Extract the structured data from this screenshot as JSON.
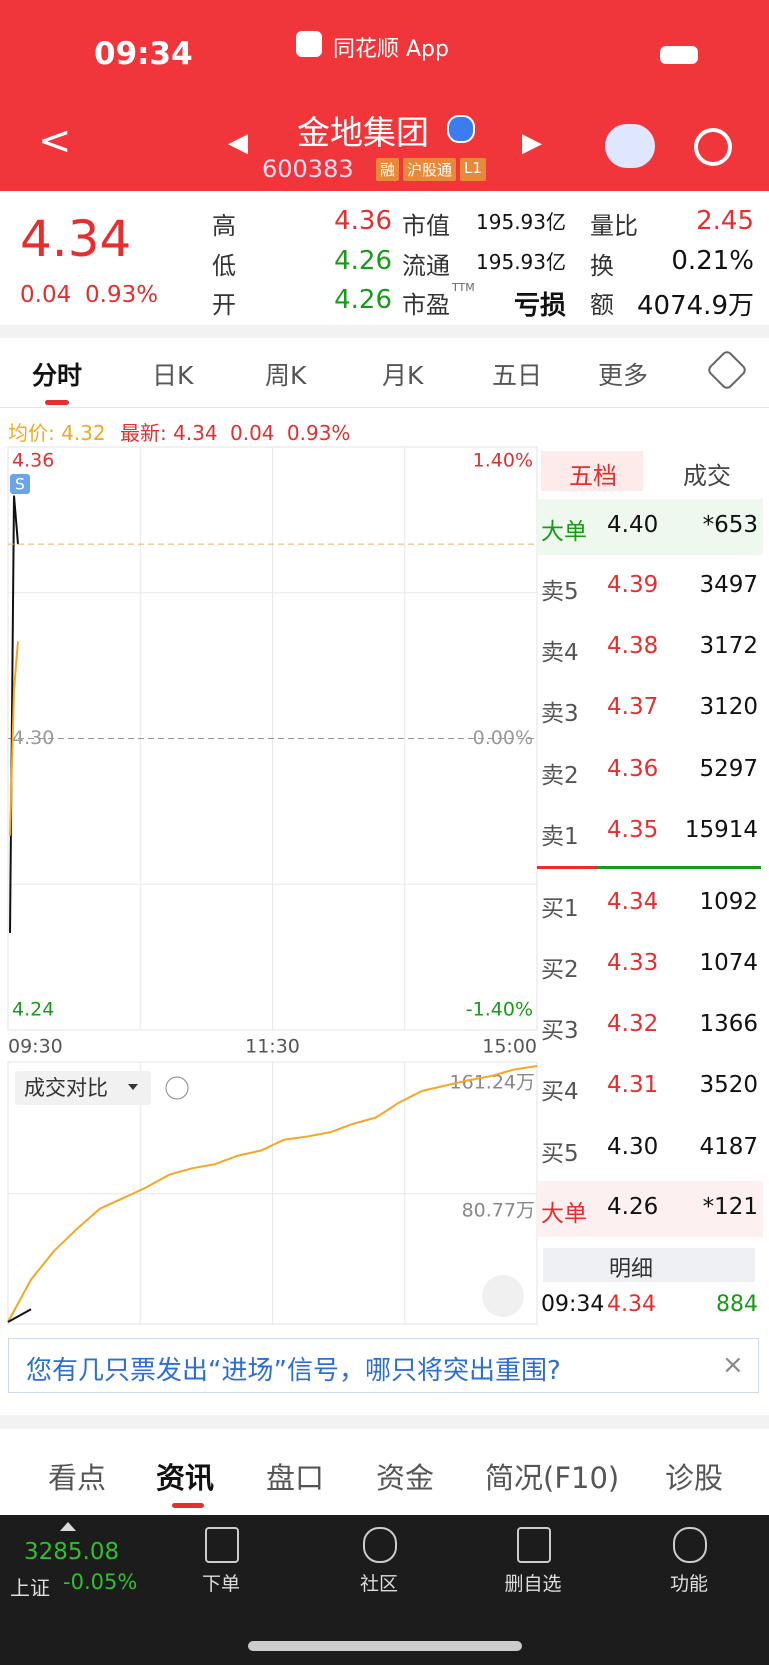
{
  "status_bar": {
    "time": "09:34",
    "app": "同花顺 App"
  },
  "header": {
    "name": "金地集团",
    "code": "600383",
    "badges": [
      "融",
      "沪股通",
      "L1"
    ]
  },
  "quote": {
    "price": "4.34",
    "change": "0.04",
    "change_pct": "0.93%",
    "columns": [
      [
        {
          "label": "高",
          "value": "4.36",
          "tone": "red"
        },
        {
          "label": "低",
          "value": "4.26",
          "tone": "green"
        },
        {
          "label": "开",
          "value": "4.26",
          "tone": "green"
        }
      ],
      [
        {
          "label": "市值",
          "value": "195.93亿",
          "tone": "black"
        },
        {
          "label": "流通",
          "value": "195.93亿",
          "tone": "black"
        },
        {
          "label": "市盈",
          "sup": "TTM",
          "value": "亏损",
          "tone": "black"
        }
      ],
      [
        {
          "label": "量比",
          "value": "2.45",
          "tone": "red"
        },
        {
          "label": "换",
          "value": "0.21%",
          "tone": "black"
        },
        {
          "label": "额",
          "value": "4074.9万",
          "tone": "black"
        }
      ]
    ]
  },
  "tabs": [
    "分时",
    "日K",
    "周K",
    "月K",
    "五日",
    "更多"
  ],
  "chart_info": {
    "avg_label": "均价:",
    "avg": "4.32",
    "latest_label": "最新:",
    "latest": "4.34",
    "change": "0.04",
    "change_pct": "0.93%"
  },
  "intraday": {
    "type": "line",
    "marker": "S",
    "ylim": [
      4.24,
      4.36
    ],
    "yticks": [
      4.36,
      {
        "value": 4.3,
        "label": "4.30"
      },
      4.24
    ],
    "y2lim": [
      -1.4,
      1.4
    ],
    "y2ticks": [
      {
        "value": 1.4,
        "label": "1.40%"
      },
      {
        "value": 0,
        "label": "0.00%"
      },
      {
        "value": -1.4,
        "label": "-1.40%"
      }
    ],
    "xticks": [
      "09:30",
      "11:30",
      "15:00"
    ],
    "series": [
      {
        "color": "#111111",
        "values": [
          4.26,
          4.35,
          4.34
        ]
      },
      {
        "color": "#f5a623",
        "values": [
          4.28,
          4.31,
          4.32
        ]
      }
    ]
  },
  "volume": {
    "type": "line",
    "dropdown": "成交对比",
    "ylim": [
      0,
      161.24
    ],
    "yticks": [
      {
        "value": 161.24,
        "label": "161.24万"
      },
      {
        "value": 80.77,
        "label": "80.77万"
      }
    ],
    "series": [
      {
        "color": "#f5a623",
        "values": [
          0,
          26.7,
          44.7,
          58.7,
          71.4,
          78,
          84.7,
          92.7,
          96.8,
          99.4,
          104.8,
          108,
          114.8,
          116.8,
          119.5,
          124.8,
          128.8,
          138.2,
          145.5,
          148.9,
          152.2,
          154.9,
          159,
          161.24
        ]
      },
      {
        "color": "#111111",
        "values": [
          0,
          8
        ]
      }
    ]
  },
  "order_book": {
    "tabs": [
      "五档",
      "成交"
    ],
    "rows": [
      {
        "label": "大单",
        "price": "4.40",
        "volume": "*653",
        "label_tone": "green",
        "tone": "black",
        "bg": "#eef8ee"
      },
      {
        "label": "卖5",
        "price": "4.39",
        "volume": "3497",
        "label_tone": "gray",
        "tone": "red"
      },
      {
        "label": "卖4",
        "price": "4.38",
        "volume": "3172",
        "label_tone": "gray",
        "tone": "red"
      },
      {
        "label": "卖3",
        "price": "4.37",
        "volume": "3120",
        "label_tone": "gray",
        "tone": "red"
      },
      {
        "label": "卖2",
        "price": "4.36",
        "volume": "5297",
        "label_tone": "gray",
        "tone": "red"
      },
      {
        "label": "卖1",
        "price": "4.35",
        "volume": "15914",
        "label_tone": "gray",
        "tone": "red"
      },
      {
        "label": "买1",
        "price": "4.34",
        "volume": "1092",
        "label_tone": "gray",
        "tone": "red"
      },
      {
        "label": "买2",
        "price": "4.33",
        "volume": "1074",
        "label_tone": "gray",
        "tone": "red"
      },
      {
        "label": "买3",
        "price": "4.32",
        "volume": "1366",
        "label_tone": "gray",
        "tone": "red"
      },
      {
        "label": "买4",
        "price": "4.31",
        "volume": "3520",
        "label_tone": "gray",
        "tone": "red"
      },
      {
        "label": "买5",
        "price": "4.30",
        "volume": "4187",
        "label_tone": "gray",
        "tone": "black"
      },
      {
        "label": "大单",
        "price": "4.26",
        "volume": "*121",
        "label_tone": "red",
        "tone": "black",
        "bg": "#fdf0f0"
      }
    ],
    "detail": "明细",
    "last_trade": {
      "time": "09:34",
      "price": "4.34",
      "volume": "884"
    }
  },
  "banner": "您有几只票发出“进场”信号，哪只将突出重围?",
  "bottom_tabs": [
    "看点",
    "资讯",
    "盘口",
    "资金",
    "简况(F10)",
    "诊股"
  ],
  "footer": {
    "index_value": "3285.08",
    "index_name": "上证",
    "index_change": "-0.05%",
    "items": [
      "下单",
      "社区",
      "删自选",
      "功能"
    ]
  }
}
